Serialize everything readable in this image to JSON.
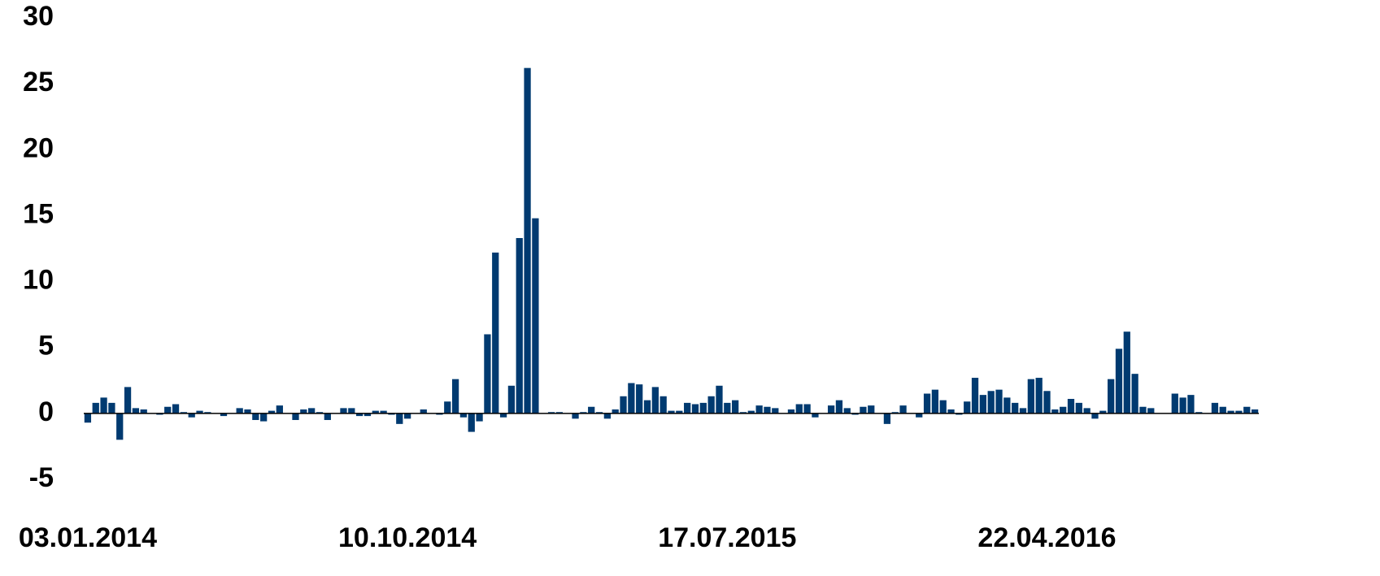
{
  "chart_data": {
    "type": "bar",
    "color": "#003a70",
    "categories": [
      "03.01.2014",
      null,
      null,
      null,
      null,
      null,
      null,
      null,
      null,
      null,
      null,
      null,
      null,
      null,
      null,
      null,
      null,
      null,
      null,
      null,
      null,
      null,
      null,
      null,
      null,
      null,
      null,
      null,
      null,
      null,
      null,
      null,
      null,
      null,
      null,
      null,
      null,
      null,
      null,
      null,
      "10.10.2014",
      null,
      null,
      null,
      null,
      null,
      null,
      null,
      null,
      null,
      null,
      null,
      null,
      null,
      null,
      null,
      null,
      null,
      null,
      null,
      null,
      null,
      null,
      null,
      null,
      null,
      null,
      null,
      null,
      null,
      null,
      null,
      null,
      null,
      null,
      null,
      null,
      null,
      null,
      null,
      "17.07.2015",
      null,
      null,
      null,
      null,
      null,
      null,
      null,
      null,
      null,
      null,
      null,
      null,
      null,
      null,
      null,
      null,
      null,
      null,
      null,
      null,
      null,
      null,
      null,
      null,
      null,
      null,
      null,
      null,
      null,
      null,
      null,
      null,
      null,
      null,
      null,
      null,
      null,
      null,
      null,
      "22.04.2016",
      null,
      null,
      null,
      null,
      null,
      null,
      null,
      null,
      null,
      null,
      null,
      null,
      null,
      null,
      null,
      null,
      null,
      null,
      null,
      null,
      null,
      null,
      null,
      null,
      null,
      null
    ],
    "values": [
      -0.7,
      0.8,
      1.2,
      0.8,
      -2.0,
      2.0,
      0.4,
      0.3,
      0,
      -0.1,
      0.5,
      0.7,
      0.1,
      -0.3,
      0.2,
      0.1,
      0,
      -0.2,
      0,
      0.4,
      0.3,
      -0.5,
      -0.6,
      0.2,
      0.6,
      0,
      -0.5,
      0.3,
      0.4,
      0.1,
      -0.5,
      0,
      0.4,
      0.4,
      -0.2,
      -0.2,
      0.2,
      0.2,
      -0.1,
      -0.8,
      -0.4,
      0,
      0.3,
      0,
      -0.1,
      0.9,
      2.6,
      -0.3,
      -1.4,
      -0.6,
      6.0,
      12.2,
      -0.3,
      2.1,
      13.3,
      26.2,
      14.8,
      0,
      0.1,
      0.1,
      0,
      -0.4,
      0.1,
      0.5,
      0.1,
      -0.4,
      0.3,
      1.3,
      2.3,
      2.2,
      1.0,
      2.0,
      1.3,
      0.2,
      0.2,
      0.8,
      0.7,
      0.8,
      1.3,
      2.1,
      0.8,
      1.0,
      0.1,
      0.2,
      0.6,
      0.5,
      0.4,
      0,
      0.3,
      0.7,
      0.7,
      -0.3,
      0,
      0.6,
      1.0,
      0.4,
      -0.1,
      0.5,
      0.6,
      0,
      -0.8,
      0.1,
      0.6,
      0,
      -0.3,
      1.5,
      1.8,
      1.0,
      0.3,
      -0.1,
      0.9,
      2.7,
      1.4,
      1.7,
      1.8,
      1.2,
      0.8,
      0.4,
      2.6,
      2.7,
      1.7,
      0.3,
      0.5,
      1.1,
      0.8,
      0.4,
      -0.4,
      0.2,
      2.6,
      4.9,
      6.2,
      3.0,
      0.5,
      0.4,
      0,
      0,
      1.5,
      1.2,
      1.4,
      0.1,
      0,
      0.8,
      0.5,
      0.2,
      0.2,
      0.5,
      0.3
    ],
    "ylim": [
      -5,
      30
    ],
    "yticks": [
      -5,
      0,
      5,
      10,
      15,
      20,
      25,
      30
    ],
    "grid": false
  }
}
